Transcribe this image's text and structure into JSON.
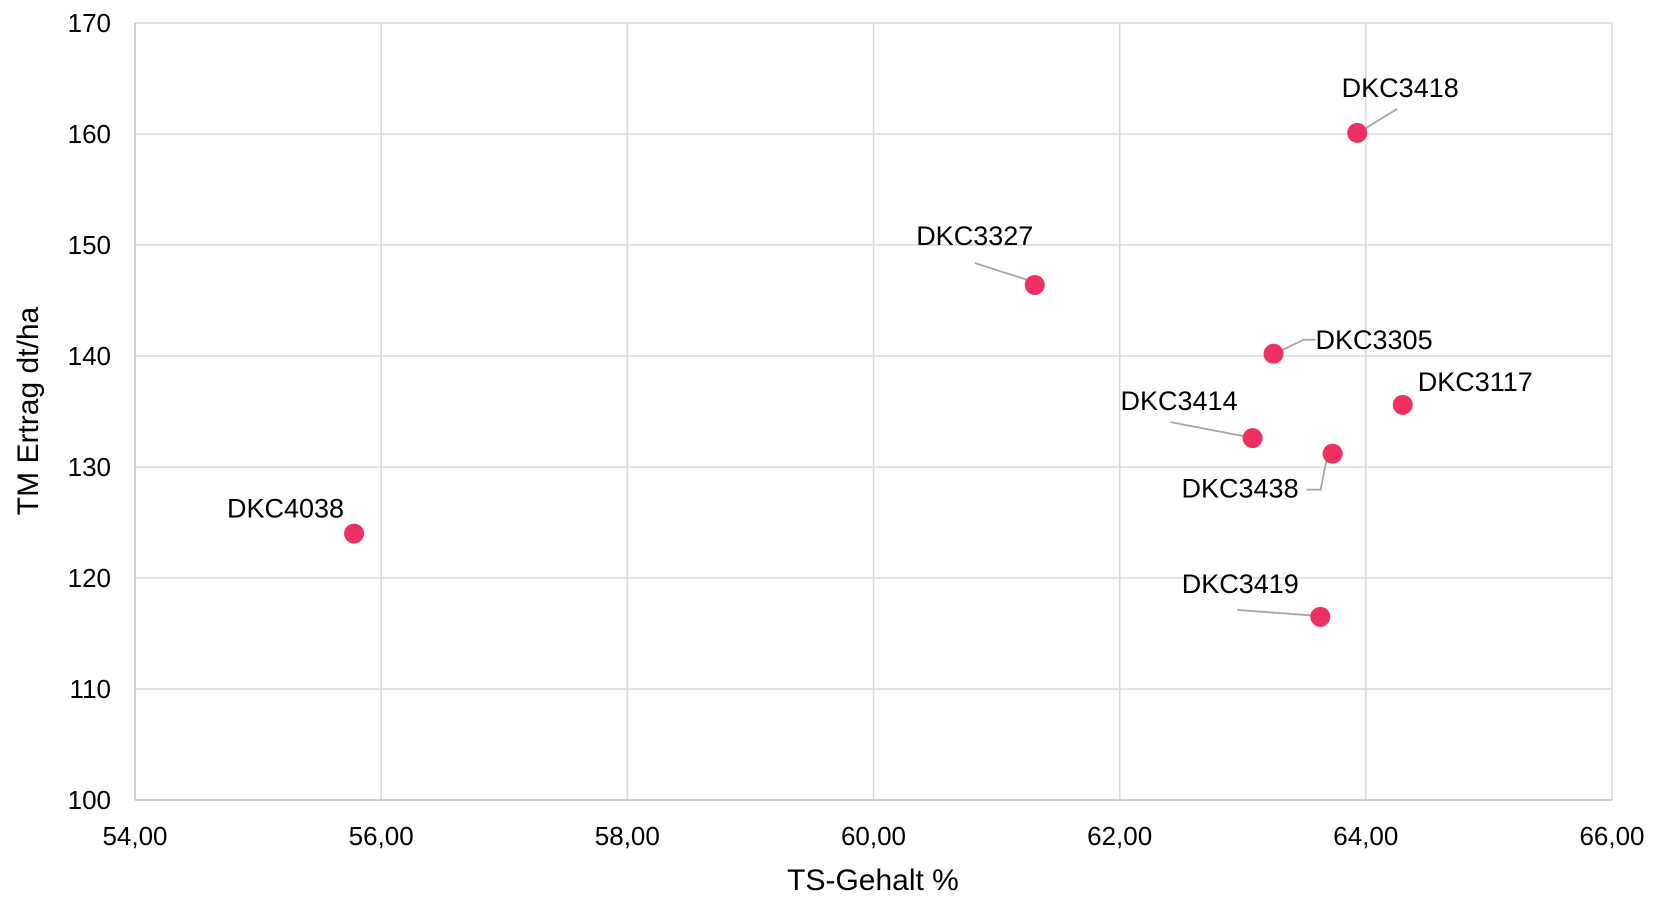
{
  "chart_data": {
    "type": "scatter",
    "title": "",
    "xlabel": "TS-Gehalt %",
    "ylabel": "TM Ertrag dt/ha",
    "xlim": [
      54,
      66
    ],
    "ylim": [
      100,
      170
    ],
    "x_ticks": [
      54,
      56,
      58,
      60,
      62,
      64,
      66
    ],
    "y_ticks": [
      100,
      110,
      120,
      130,
      140,
      150,
      160,
      170
    ],
    "x_tick_labels": [
      "54,00",
      "56,00",
      "58,00",
      "60,00",
      "62,00",
      "64,00",
      "66,00"
    ],
    "y_tick_labels": [
      "100",
      "110",
      "120",
      "130",
      "140",
      "150",
      "160",
      "170"
    ],
    "grid": true,
    "legend": "none",
    "marker_color": "#ee3060",
    "points": [
      {
        "label": "DKC4038",
        "x": 55.78,
        "y": 124.0
      },
      {
        "label": "DKC3327",
        "x": 61.31,
        "y": 146.4
      },
      {
        "label": "DKC3418",
        "x": 63.93,
        "y": 160.1
      },
      {
        "label": "DKC3305",
        "x": 63.25,
        "y": 140.2
      },
      {
        "label": "DKC3117",
        "x": 64.3,
        "y": 135.6
      },
      {
        "label": "DKC3414",
        "x": 63.08,
        "y": 132.6
      },
      {
        "label": "DKC3438",
        "x": 63.73,
        "y": 131.2
      },
      {
        "label": "DKC3419",
        "x": 63.63,
        "y": 116.5
      }
    ]
  }
}
